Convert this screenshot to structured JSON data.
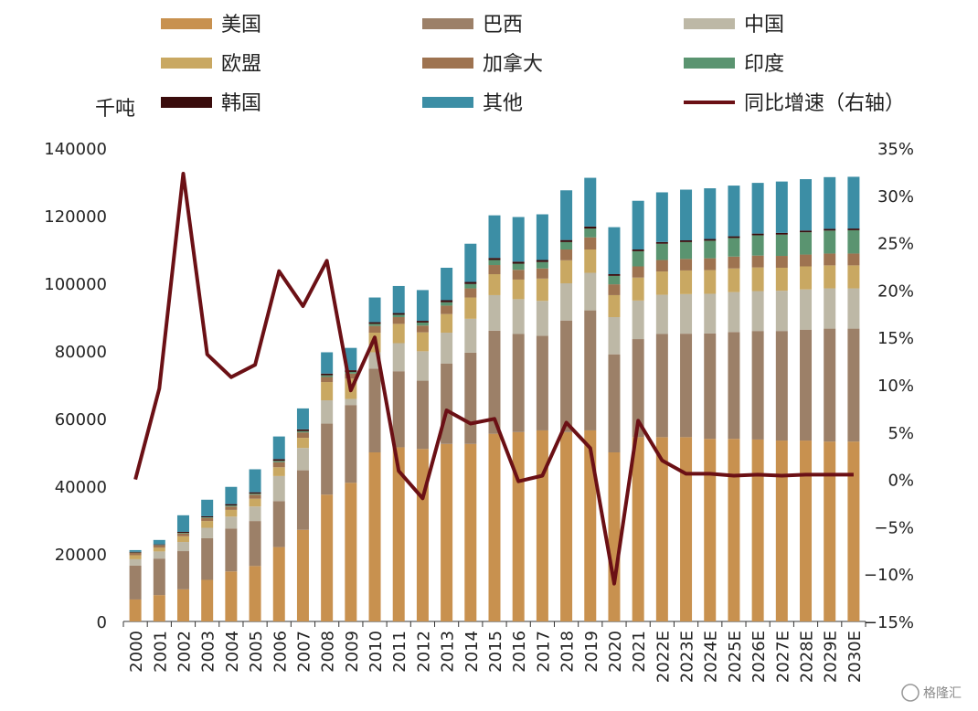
{
  "chart_data": {
    "type": "bar",
    "stacked": true,
    "categories": [
      "2000",
      "2001",
      "2002",
      "2003",
      "2004",
      "2005",
      "2006",
      "2007",
      "2008",
      "2009",
      "2010",
      "2011",
      "2012",
      "2013",
      "2014",
      "2015",
      "2016",
      "2017",
      "2018",
      "2019",
      "2020",
      "2021",
      "2022E",
      "2023E",
      "2024E",
      "2025E",
      "2026E",
      "2027E",
      "2028E",
      "2029E",
      "2030E"
    ],
    "ylabel": "千吨",
    "ylim": [
      0,
      140000
    ],
    "yticks": [
      "140000",
      "120000",
      "100000",
      "80000",
      "60000",
      "40000",
      "20000",
      "0"
    ],
    "y2lim": [
      -15,
      35
    ],
    "y2ticks": [
      "35%",
      "30%",
      "25%",
      "20%",
      "15%",
      "10%",
      "5%",
      "0%",
      "−5%",
      "−10%",
      "−15%"
    ],
    "legend_position": "top",
    "series": [
      {
        "name": "美国",
        "color": "#c8914f",
        "values": [
          6500,
          7800,
          9500,
          12300,
          14800,
          16400,
          22000,
          27100,
          37500,
          41000,
          50000,
          51500,
          51000,
          52500,
          52500,
          55500,
          56000,
          56500,
          56000,
          56500,
          50000,
          54500,
          54500,
          54500,
          54000,
          54000,
          53800,
          53500,
          53500,
          53200,
          53200
        ]
      },
      {
        "name": "巴西",
        "color": "#9c8068",
        "values": [
          10000,
          10800,
          11300,
          12300,
          12700,
          13300,
          13600,
          17600,
          21000,
          23000,
          24800,
          22500,
          20200,
          23800,
          27000,
          30500,
          29000,
          28000,
          33000,
          35500,
          29000,
          29000,
          30500,
          30600,
          31200,
          31600,
          32100,
          32400,
          32800,
          33400,
          33400
        ]
      },
      {
        "name": "中国",
        "color": "#bdb8a6",
        "values": [
          1900,
          2100,
          2700,
          3100,
          3500,
          4300,
          7400,
          6600,
          6900,
          1800,
          4800,
          8300,
          8700,
          9100,
          10000,
          10500,
          10300,
          10300,
          11000,
          11100,
          11000,
          11400,
          11600,
          11700,
          11700,
          11800,
          11800,
          11900,
          11900,
          11900,
          11900
        ]
      },
      {
        "name": "欧盟",
        "color": "#c9a862",
        "values": [
          1200,
          1100,
          1700,
          2000,
          2000,
          2300,
          2600,
          3000,
          5400,
          6000,
          5800,
          5700,
          5600,
          5500,
          6300,
          6200,
          5800,
          6600,
          6800,
          6900,
          6500,
          6800,
          6900,
          7000,
          7000,
          7000,
          7000,
          6800,
          6800,
          6800,
          6800
        ]
      },
      {
        "name": "加拿大",
        "color": "#9e7350",
        "values": [
          700,
          700,
          800,
          900,
          1000,
          1200,
          1500,
          1600,
          1500,
          1500,
          2000,
          2000,
          2000,
          2500,
          2700,
          2700,
          2900,
          3000,
          3200,
          3600,
          3200,
          3300,
          3400,
          3400,
          3500,
          3500,
          3500,
          3500,
          3500,
          3500,
          3500
        ]
      },
      {
        "name": "印度",
        "color": "#5a9470",
        "values": [
          100,
          100,
          200,
          200,
          300,
          300,
          400,
          400,
          500,
          500,
          600,
          700,
          900,
          1000,
          1300,
          1500,
          1800,
          1900,
          2200,
          2600,
          2500,
          4500,
          4800,
          5000,
          5200,
          5500,
          6000,
          6300,
          6600,
          6800,
          6900
        ]
      },
      {
        "name": "韩国",
        "color": "#3a0c0c",
        "values": [
          200,
          200,
          300,
          300,
          400,
          400,
          500,
          500,
          500,
          500,
          500,
          500,
          500,
          600,
          600,
          600,
          600,
          600,
          600,
          600,
          500,
          500,
          500,
          500,
          500,
          500,
          500,
          500,
          500,
          500,
          500
        ]
      },
      {
        "name": "其他",
        "color": "#3c8ea5",
        "values": [
          500,
          1300,
          4900,
          4900,
          5100,
          6800,
          6700,
          6200,
          6300,
          6600,
          7300,
          8000,
          9100,
          9600,
          11300,
          12600,
          13200,
          13500,
          14700,
          14400,
          13900,
          14400,
          14700,
          15000,
          15000,
          15000,
          15000,
          15200,
          15200,
          15300,
          15300
        ]
      },
      {
        "name": "同比增速（右轴）",
        "color": "#6b1015",
        "axis": "right",
        "type": "line",
        "values": [
          0.0,
          9.6,
          32.3,
          13.2,
          10.8,
          12.1,
          22.0,
          18.3,
          23.1,
          9.4,
          15.0,
          0.9,
          -2.0,
          7.3,
          5.9,
          6.4,
          -0.2,
          0.4,
          6.0,
          3.3,
          -11.0,
          6.2,
          2.0,
          0.6,
          0.6,
          0.4,
          0.5,
          0.4,
          0.5,
          0.5,
          0.5
        ]
      }
    ]
  },
  "watermark": "格隆汇"
}
